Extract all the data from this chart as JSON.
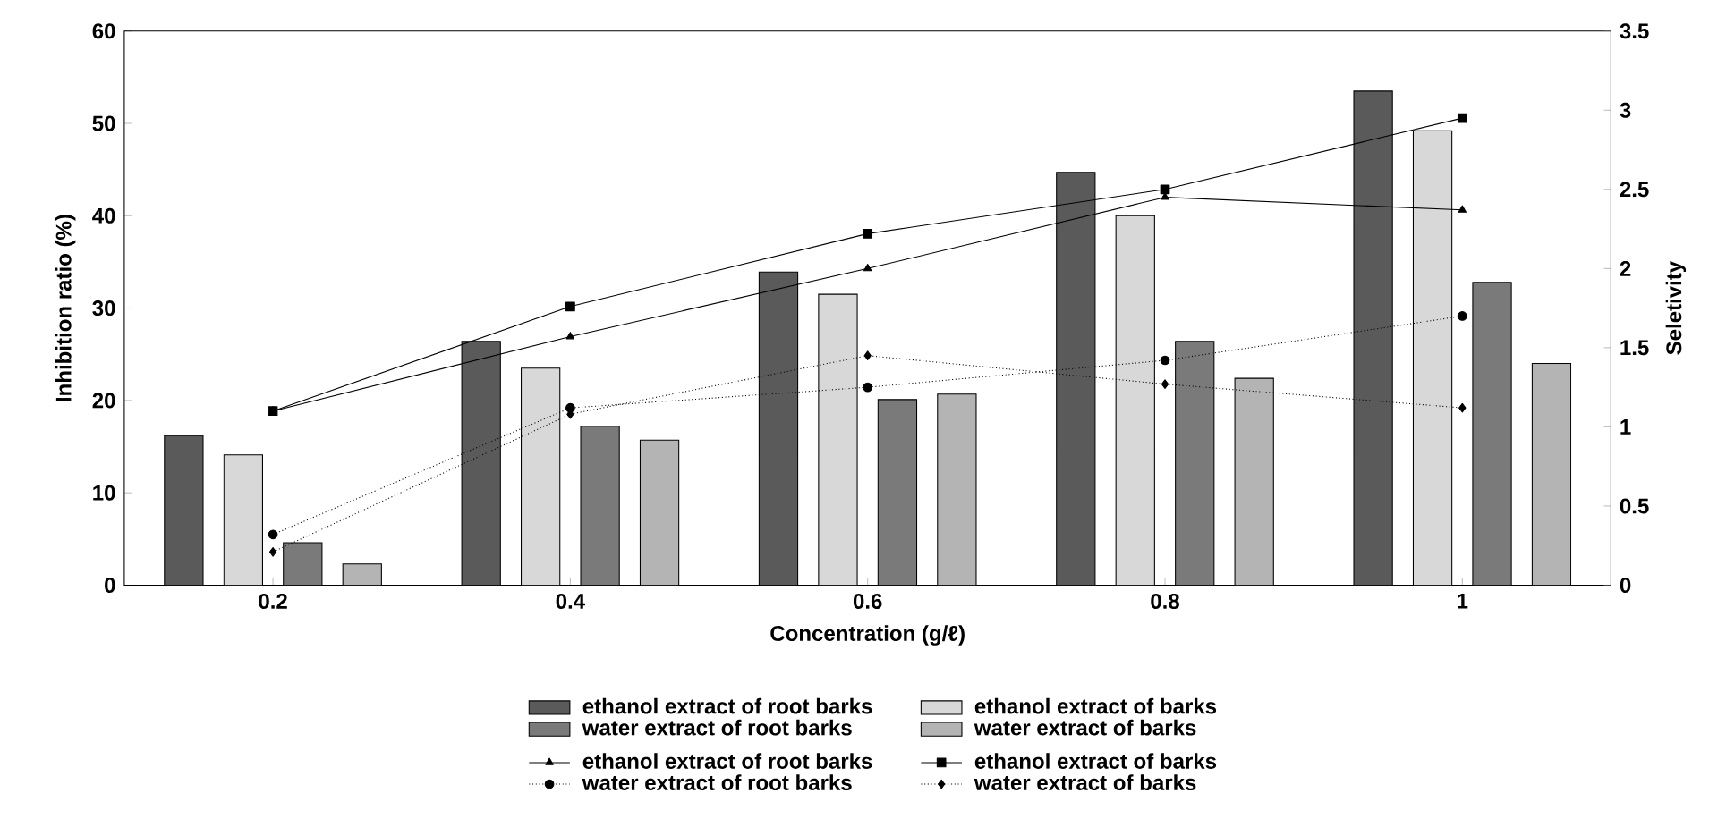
{
  "chart_data": {
    "type": "bar",
    "xlabel": "Concentration (g/ℓ)",
    "ylabel": "Inhibition ratio (%)",
    "y2label": "Seletivity",
    "categories": [
      "0.2",
      "0.4",
      "0.6",
      "0.8",
      "1"
    ],
    "ylim": [
      0,
      60
    ],
    "yticks": [
      0,
      10,
      20,
      30,
      40,
      50,
      60
    ],
    "y2lim": [
      0,
      3.5
    ],
    "y2ticks": [
      0,
      0.5,
      1,
      1.5,
      2,
      2.5,
      3,
      3.5
    ],
    "legend": "bottom",
    "series": [
      {
        "name": "ethanol extract of root barks",
        "type": "bar",
        "color": "#5a5a5a",
        "values": [
          16.2,
          26.4,
          33.9,
          44.7,
          53.5
        ]
      },
      {
        "name": "ethanol extract of barks",
        "type": "bar",
        "color": "#d8d8d8",
        "values": [
          14.1,
          23.5,
          31.5,
          40.0,
          49.2
        ]
      },
      {
        "name": "water extract of root barks",
        "type": "bar",
        "color": "#7a7a7a",
        "values": [
          4.6,
          17.2,
          20.1,
          26.4,
          32.8
        ]
      },
      {
        "name": "water extract of barks",
        "type": "bar",
        "color": "#b4b4b4",
        "values": [
          2.3,
          15.7,
          20.7,
          22.4,
          24.0
        ]
      },
      {
        "name": "ethanol extract of root barks",
        "type": "line",
        "axis": "y2",
        "color": "#000000",
        "marker": "triangle",
        "line_style": "solid",
        "values": [
          1.1,
          1.57,
          2.0,
          2.45,
          2.37
        ]
      },
      {
        "name": "ethanol extract of barks",
        "type": "line",
        "axis": "y2",
        "color": "#000000",
        "marker": "square",
        "line_style": "solid",
        "values": [
          1.1,
          1.76,
          2.22,
          2.5,
          2.95
        ]
      },
      {
        "name": "water extract of root barks",
        "type": "line",
        "axis": "y2",
        "color": "#000000",
        "marker": "circle",
        "line_style": "dotted",
        "values": [
          0.32,
          1.12,
          1.25,
          1.42,
          1.7
        ]
      },
      {
        "name": "water extract of barks",
        "type": "line",
        "axis": "y2",
        "color": "#000000",
        "marker": "diamond",
        "line_style": "dotted",
        "values": [
          0.21,
          1.08,
          1.45,
          1.27,
          1.12
        ]
      }
    ]
  }
}
